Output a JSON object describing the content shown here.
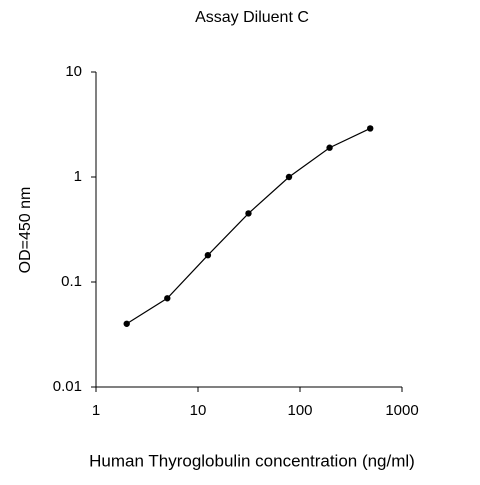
{
  "chart_data": {
    "type": "line",
    "title": "Assay Diluent C",
    "x_label": "Human Thyroglobulin concentration (ng/ml)",
    "y_label": "OD=450 nm",
    "x": [
      2,
      5,
      12.5,
      31.25,
      78,
      195,
      488
    ],
    "series": [
      {
        "color": "#000000",
        "values": [
          0.04,
          0.07,
          0.18,
          0.45,
          1.0,
          1.9,
          2.9
        ]
      }
    ],
    "xscale": "log",
    "yscale": "log",
    "xlim": [
      1,
      1000
    ],
    "ylim": [
      0.01,
      10
    ],
    "xticks": [
      1,
      10,
      100,
      1000
    ],
    "yticks": [
      0.01,
      0.1,
      1,
      10
    ]
  }
}
